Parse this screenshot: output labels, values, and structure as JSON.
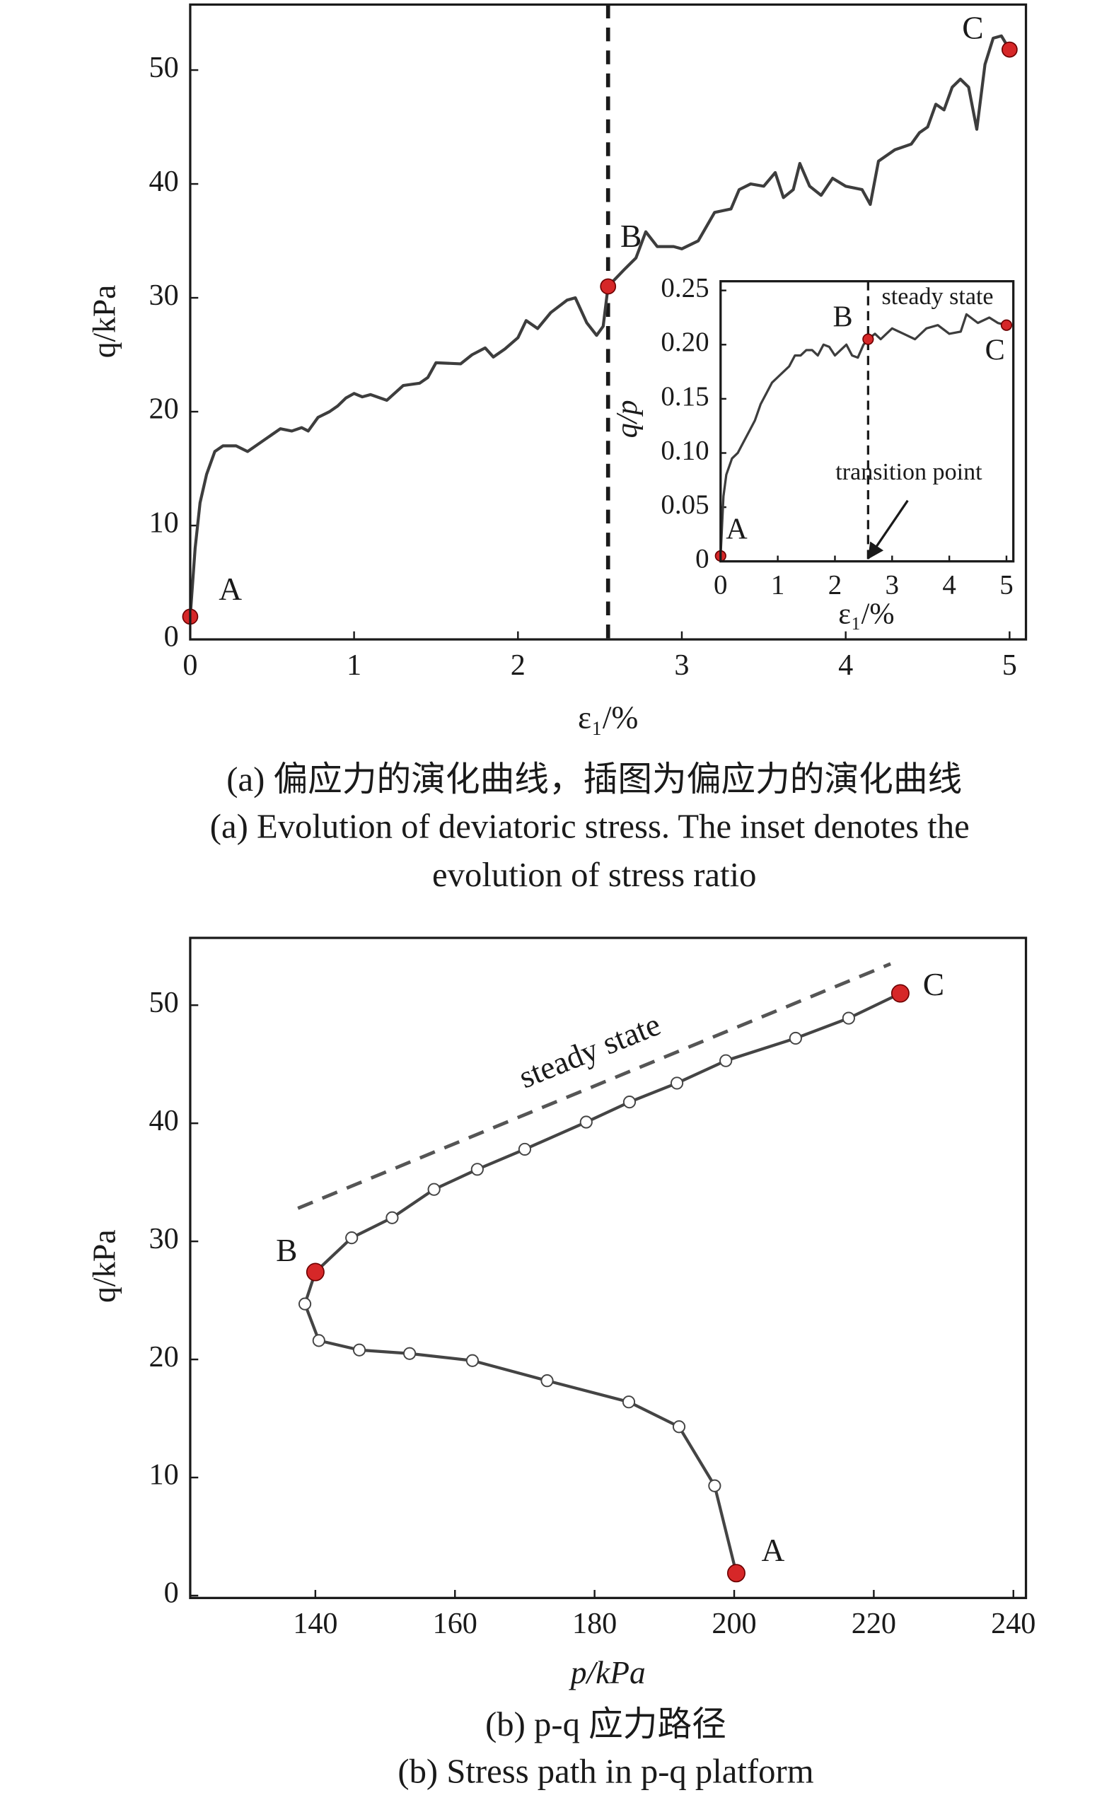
{
  "chart_data": [
    {
      "type": "line",
      "xlabel": "ε₁/%",
      "ylabel": "q/kPa",
      "xlim": [
        0,
        5.1
      ],
      "ylim": [
        0,
        55.75
      ],
      "xticks": [
        0,
        1,
        2,
        3,
        4,
        5
      ],
      "yticks": [
        0,
        10,
        20,
        30,
        40,
        50
      ],
      "series": [
        {
          "color": "#3d3d3d",
          "x": [
            0,
            0.03,
            0.06,
            0.1,
            0.15,
            0.2,
            0.28,
            0.35,
            0.45,
            0.55,
            0.62,
            0.68,
            0.72,
            0.78,
            0.85,
            0.9,
            0.95,
            1.0,
            1.05,
            1.1,
            1.2,
            1.3,
            1.4,
            1.45,
            1.5,
            1.65,
            1.72,
            1.8,
            1.85,
            1.92,
            2.0,
            2.05,
            2.12,
            2.2,
            2.3,
            2.35,
            2.42,
            2.48,
            2.52,
            2.55,
            2.65,
            2.72,
            2.78,
            2.85,
            2.95,
            3.0,
            3.1,
            3.2,
            3.3,
            3.35,
            3.42,
            3.5,
            3.57,
            3.62,
            3.68,
            3.72,
            3.78,
            3.85,
            3.92,
            4.0,
            4.1,
            4.15,
            4.2,
            4.3,
            4.4,
            4.45,
            4.5,
            4.55,
            4.6,
            4.65,
            4.7,
            4.75,
            4.8,
            4.85,
            4.9,
            4.95,
            5.0
          ],
          "values": [
            2,
            8,
            12,
            14.5,
            16.5,
            17,
            17,
            16.5,
            17.5,
            18.5,
            18.3,
            18.6,
            18.3,
            19.5,
            20,
            20.5,
            21.2,
            21.6,
            21.3,
            21.5,
            21,
            22.3,
            22.5,
            23,
            24.3,
            24.2,
            25,
            25.6,
            24.8,
            25.5,
            26.5,
            28,
            27.3,
            28.7,
            29.8,
            30,
            27.8,
            26.7,
            27.5,
            31,
            32.5,
            33.5,
            35.8,
            34.5,
            34.5,
            34.3,
            35,
            37.5,
            37.8,
            39.5,
            40,
            39.8,
            41,
            38.8,
            39.5,
            41.8,
            39.8,
            39,
            40.5,
            39.8,
            39.5,
            38.2,
            42,
            43,
            43.5,
            44.5,
            45,
            47,
            46.5,
            48.5,
            49.2,
            48.5,
            44.8,
            50.5,
            52.8,
            53,
            51.8
          ]
        }
      ],
      "markers": {
        "color": "#d62728",
        "x": [
          0,
          2.55,
          5.0
        ],
        "y": [
          2,
          31,
          51.8
        ],
        "labels": [
          "A",
          "B",
          "C"
        ]
      },
      "vline": 2.55
    },
    {
      "type": "line",
      "xlabel": "ε₁/%",
      "ylabel": "q/p",
      "xlim": [
        0,
        5.12
      ],
      "ylim": [
        0,
        0.2585
      ],
      "xticks": [
        0,
        1,
        2,
        3,
        4,
        5
      ],
      "yticks": [
        0,
        0.05,
        {
          "value": 0.1,
          "label": "0.10"
        },
        0.15,
        {
          "value": 0.2,
          "label": "0.20"
        },
        0.25
      ],
      "series": [
        {
          "color": "#3d3d3d",
          "x": [
            0,
            0.05,
            0.1,
            0.2,
            0.3,
            0.4,
            0.5,
            0.6,
            0.7,
            0.8,
            0.9,
            1.0,
            1.1,
            1.2,
            1.3,
            1.4,
            1.5,
            1.6,
            1.7,
            1.8,
            1.9,
            2.0,
            2.1,
            2.2,
            2.3,
            2.4,
            2.5,
            2.58,
            2.7,
            2.8,
            3.0,
            3.2,
            3.4,
            3.6,
            3.8,
            4.0,
            4.2,
            4.3,
            4.5,
            4.7,
            4.85,
            5.0
          ],
          "values": [
            0.005,
            0.06,
            0.08,
            0.095,
            0.1,
            0.11,
            0.12,
            0.13,
            0.145,
            0.155,
            0.165,
            0.17,
            0.175,
            0.18,
            0.19,
            0.19,
            0.195,
            0.195,
            0.19,
            0.2,
            0.198,
            0.19,
            0.195,
            0.2,
            0.19,
            0.188,
            0.2,
            0.205,
            0.21,
            0.205,
            0.215,
            0.21,
            0.205,
            0.215,
            0.218,
            0.21,
            0.212,
            0.228,
            0.22,
            0.225,
            0.22,
            0.218
          ]
        }
      ],
      "markers": {
        "color": "#d62728",
        "x": [
          0,
          2.58,
          5.0
        ],
        "y": [
          0.005,
          0.205,
          0.218
        ],
        "labels": [
          "A",
          "B",
          "C"
        ]
      },
      "vline": 2.58,
      "annotations": [
        "steady state",
        "transition point"
      ]
    },
    {
      "type": "line",
      "xlabel": "p/kPa",
      "ylabel": "q/kPa",
      "xlim": [
        122.07,
        241.8
      ],
      "ylim": [
        -0.2,
        55.7
      ],
      "xticks": [
        140,
        160,
        180,
        200,
        220,
        240
      ],
      "yticks": [
        0,
        10,
        20,
        30,
        40,
        50
      ],
      "series": [
        {
          "color": "#444444",
          "marker_face": "#ffffff",
          "x": [
            200.3,
            197.2,
            192.1,
            184.9,
            173.2,
            162.5,
            153.5,
            146.3,
            140.5,
            138.5,
            140,
            145.2,
            151,
            157,
            163.2,
            170,
            178.8,
            185,
            191.8,
            198.8,
            208.8,
            216.4,
            223.8
          ],
          "values": [
            1.9,
            9.3,
            14.3,
            16.4,
            18.2,
            19.9,
            20.5,
            20.8,
            21.6,
            24.7,
            27.4,
            30.3,
            32,
            34.4,
            36.1,
            37.8,
            40.1,
            41.8,
            43.4,
            45.3,
            47.2,
            48.9,
            51
          ]
        }
      ],
      "markers": {
        "color": "#d62728",
        "x": [
          200.3,
          140,
          223.8
        ],
        "y": [
          1.9,
          27.4,
          51
        ],
        "labels": [
          "A",
          "B",
          "C"
        ]
      },
      "reference_line": {
        "x": [
          137.5,
          222.4
        ],
        "y": [
          32.8,
          53.5
        ],
        "color": "#555555"
      },
      "annotations": [
        "steady state"
      ]
    }
  ],
  "captions": [
    "(a) 偏应力的演化曲线，插图为偏应力的演化曲线",
    "(a) Evolution of deviatoric stress. The inset denotes the",
    "evolution of stress ratio",
    "(b) p-q 应力路径",
    "(b) Stress path in p-q platform"
  ]
}
